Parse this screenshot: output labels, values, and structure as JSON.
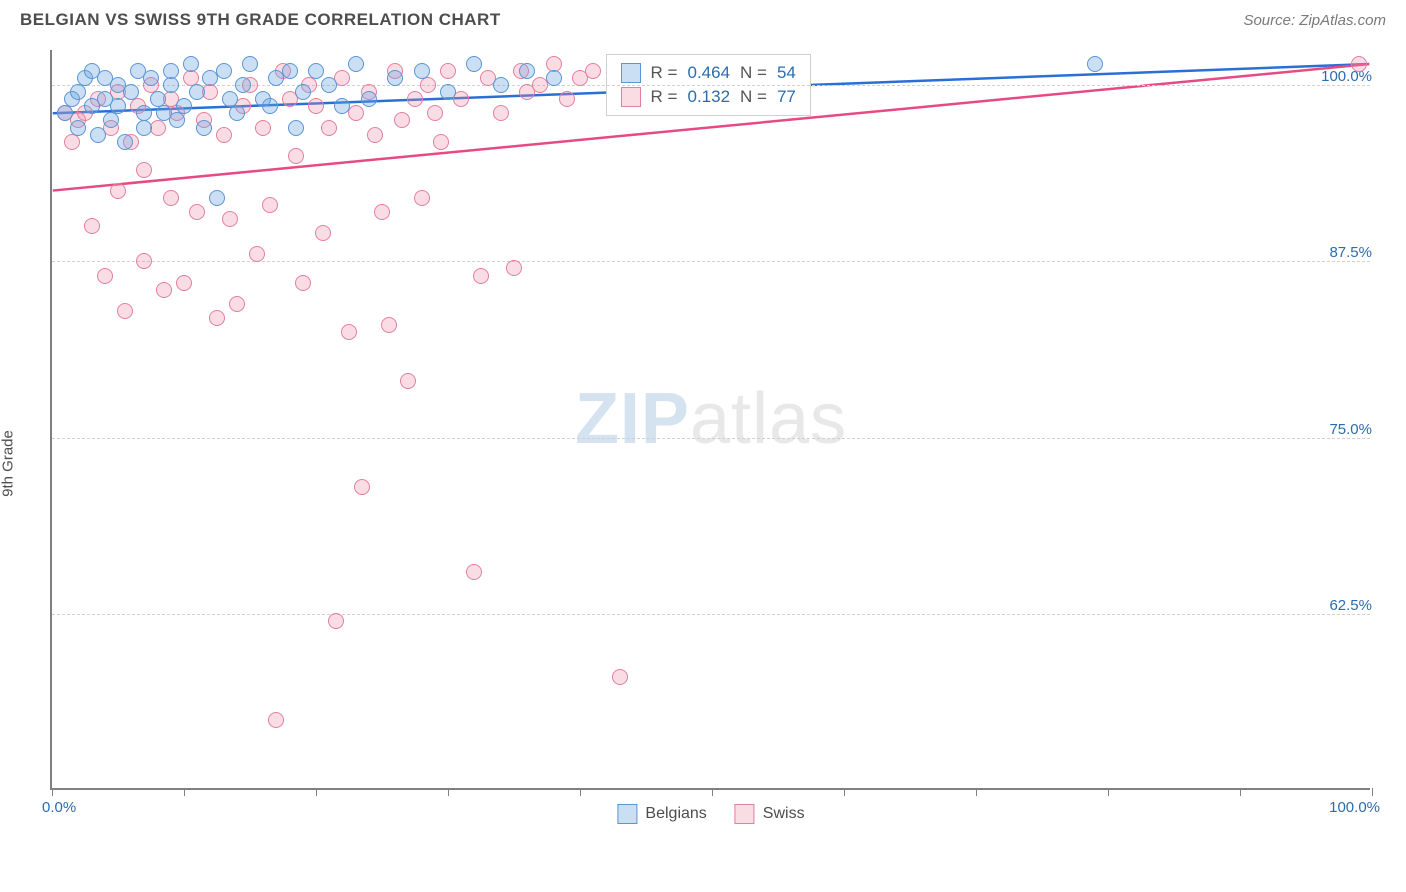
{
  "title": "BELGIAN VS SWISS 9TH GRADE CORRELATION CHART",
  "source": "Source: ZipAtlas.com",
  "ylabel": "9th Grade",
  "watermark_zip": "ZIP",
  "watermark_atlas": "atlas",
  "chart": {
    "type": "scatter",
    "xlim": [
      0,
      100
    ],
    "ylim": [
      50,
      102.5
    ],
    "xlabel_min": "0.0%",
    "xlabel_max": "100.0%",
    "ytick_labels": [
      "62.5%",
      "75.0%",
      "87.5%",
      "100.0%"
    ],
    "ytick_vals": [
      62.5,
      75.0,
      87.5,
      100.0
    ],
    "xtick_positions": [
      0,
      10,
      20,
      30,
      40,
      50,
      60,
      70,
      80,
      90,
      100
    ],
    "background_color": "#ffffff",
    "grid_color": "#d0d0d0",
    "axis_color": "#808080",
    "label_color": "#2b6cb0",
    "marker_radius": 8,
    "marker_border_width": 1.5,
    "trend_line_width": 2.5,
    "series": [
      {
        "name": "Belgians",
        "color_fill": "rgba(107,163,224,0.35)",
        "color_stroke": "#5a95d6",
        "trend_color": "#2a6fd6",
        "R": "0.464",
        "N": "54",
        "trend": {
          "x1": 0,
          "y1": 98.0,
          "x2": 100,
          "y2": 101.5
        },
        "points": [
          [
            1,
            98
          ],
          [
            1.5,
            99
          ],
          [
            2,
            99.5
          ],
          [
            2,
            97
          ],
          [
            2.5,
            100.5
          ],
          [
            3,
            98.5
          ],
          [
            3,
            101
          ],
          [
            3.5,
            96.5
          ],
          [
            4,
            99
          ],
          [
            4,
            100.5
          ],
          [
            4.5,
            97.5
          ],
          [
            5,
            98.5
          ],
          [
            5,
            100
          ],
          [
            5.5,
            96
          ],
          [
            6,
            99.5
          ],
          [
            6.5,
            101
          ],
          [
            7,
            97
          ],
          [
            7,
            98
          ],
          [
            7.5,
            100.5
          ],
          [
            8,
            99
          ],
          [
            8.5,
            98
          ],
          [
            9,
            100
          ],
          [
            9,
            101
          ],
          [
            9.5,
            97.5
          ],
          [
            10,
            98.5
          ],
          [
            10.5,
            101.5
          ],
          [
            11,
            99.5
          ],
          [
            11.5,
            97
          ],
          [
            12,
            100.5
          ],
          [
            12.5,
            92
          ],
          [
            13,
            101
          ],
          [
            13.5,
            99
          ],
          [
            14,
            98
          ],
          [
            14.5,
            100
          ],
          [
            15,
            101.5
          ],
          [
            16,
            99
          ],
          [
            16.5,
            98.5
          ],
          [
            17,
            100.5
          ],
          [
            18,
            101
          ],
          [
            18.5,
            97
          ],
          [
            19,
            99.5
          ],
          [
            20,
            101
          ],
          [
            21,
            100
          ],
          [
            22,
            98.5
          ],
          [
            23,
            101.5
          ],
          [
            24,
            99
          ],
          [
            26,
            100.5
          ],
          [
            28,
            101
          ],
          [
            30,
            99.5
          ],
          [
            32,
            101.5
          ],
          [
            34,
            100
          ],
          [
            36,
            101
          ],
          [
            38,
            100.5
          ],
          [
            79,
            101.5
          ]
        ]
      },
      {
        "name": "Swiss",
        "color_fill": "rgba(237,140,170,0.3)",
        "color_stroke": "#e37fa0",
        "trend_color": "#e74a82",
        "R": "0.132",
        "N": "77",
        "trend": {
          "x1": 0,
          "y1": 92.5,
          "x2": 100,
          "y2": 101.5
        },
        "points": [
          [
            1,
            98
          ],
          [
            1.5,
            96
          ],
          [
            2,
            97.5
          ],
          [
            2.5,
            98
          ],
          [
            3,
            90
          ],
          [
            3.5,
            99
          ],
          [
            4,
            86.5
          ],
          [
            4.5,
            97
          ],
          [
            5,
            92.5
          ],
          [
            5,
            99.5
          ],
          [
            5.5,
            84
          ],
          [
            6,
            96
          ],
          [
            6.5,
            98.5
          ],
          [
            7,
            87.5
          ],
          [
            7,
            94
          ],
          [
            7.5,
            100
          ],
          [
            8,
            97
          ],
          [
            8.5,
            85.5
          ],
          [
            9,
            99
          ],
          [
            9,
            92
          ],
          [
            9.5,
            98
          ],
          [
            10,
            86
          ],
          [
            10.5,
            100.5
          ],
          [
            11,
            91
          ],
          [
            11.5,
            97.5
          ],
          [
            12,
            99.5
          ],
          [
            12.5,
            83.5
          ],
          [
            13,
            96.5
          ],
          [
            13.5,
            90.5
          ],
          [
            14,
            84.5
          ],
          [
            14.5,
            98.5
          ],
          [
            15,
            100
          ],
          [
            15.5,
            88
          ],
          [
            16,
            97
          ],
          [
            16.5,
            91.5
          ],
          [
            17,
            55
          ],
          [
            17.5,
            101
          ],
          [
            18,
            99
          ],
          [
            18.5,
            95
          ],
          [
            19,
            86
          ],
          [
            19.5,
            100
          ],
          [
            20,
            98.5
          ],
          [
            20.5,
            89.5
          ],
          [
            21,
            97
          ],
          [
            21.5,
            62
          ],
          [
            22,
            100.5
          ],
          [
            22.5,
            82.5
          ],
          [
            23,
            98
          ],
          [
            23.5,
            71.5
          ],
          [
            24,
            99.5
          ],
          [
            24.5,
            96.5
          ],
          [
            25,
            91
          ],
          [
            25.5,
            83
          ],
          [
            26,
            101
          ],
          [
            26.5,
            97.5
          ],
          [
            27,
            79
          ],
          [
            27.5,
            99
          ],
          [
            28,
            92
          ],
          [
            28.5,
            100
          ],
          [
            29,
            98
          ],
          [
            29.5,
            96
          ],
          [
            30,
            101
          ],
          [
            31,
            99
          ],
          [
            32,
            65.5
          ],
          [
            32.5,
            86.5
          ],
          [
            33,
            100.5
          ],
          [
            34,
            98
          ],
          [
            35,
            87
          ],
          [
            35.5,
            101
          ],
          [
            36,
            99.5
          ],
          [
            37,
            100
          ],
          [
            38,
            101.5
          ],
          [
            39,
            99
          ],
          [
            40,
            100.5
          ],
          [
            41,
            101
          ],
          [
            43,
            58
          ],
          [
            99,
            101.5
          ]
        ]
      }
    ]
  },
  "legend": {
    "r_prefix": "R =",
    "n_prefix": "N ="
  },
  "bottom_legend": [
    "Belgians",
    "Swiss"
  ]
}
